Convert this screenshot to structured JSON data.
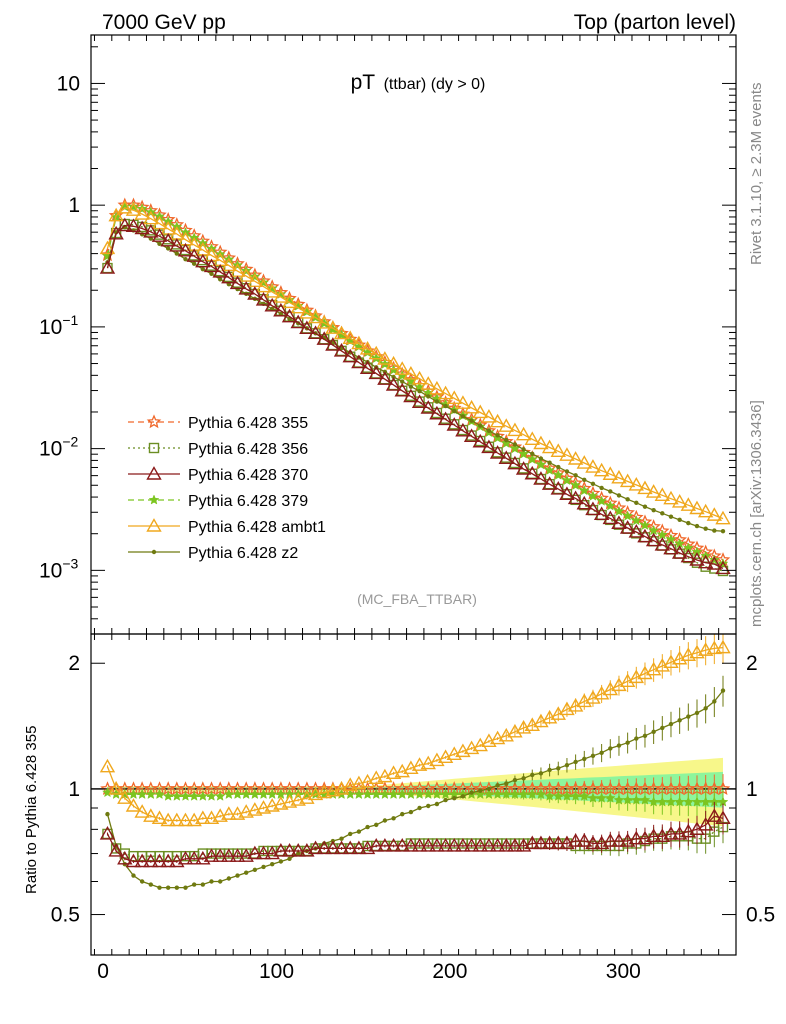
{
  "header": {
    "left": "7000 GeV pp",
    "right": "Top (parton level)"
  },
  "side_labels": {
    "rivet": "Rivet 3.1.10, ≥ 2.3M events",
    "mcplots": "mcplots.cern.ch [arXiv:1306.3436]"
  },
  "chart_data": {
    "type": "line",
    "title_main": "pT",
    "title_sub": "(ttbar) (dy > 0)",
    "watermark": "(MC_FBA_TTBAR)",
    "ratio_ylabel": "Ratio to Pythia 6.428 355",
    "x_ticks": [
      "0",
      "100",
      "200",
      "300"
    ],
    "y_ticks_main": [
      {
        "base": "10",
        "exp": ""
      },
      {
        "base": "1",
        "exp": ""
      },
      {
        "base": "10",
        "exp": "−1"
      },
      {
        "base": "10",
        "exp": "−2"
      },
      {
        "base": "10",
        "exp": "−3"
      }
    ],
    "y_ticks_ratio": [
      "0.5",
      "1",
      "2"
    ],
    "xlim": [
      -7,
      365
    ],
    "ylim_main": [
      0.0003,
      25
    ],
    "ylim_ratio": [
      0.4,
      2.35
    ],
    "scale_main": "log",
    "scale_ratio": "log",
    "x": [
      2.5,
      7.5,
      12.5,
      17.5,
      22.5,
      27.5,
      32.5,
      37.5,
      42.5,
      47.5,
      52.5,
      57.5,
      62.5,
      67.5,
      72.5,
      77.5,
      82.5,
      87.5,
      92.5,
      97.5,
      102.5,
      107.5,
      112.5,
      117.5,
      122.5,
      127.5,
      132.5,
      137.5,
      142.5,
      147.5,
      152.5,
      157.5,
      162.5,
      167.5,
      172.5,
      177.5,
      182.5,
      187.5,
      192.5,
      197.5,
      202.5,
      207.5,
      212.5,
      217.5,
      222.5,
      227.5,
      232.5,
      237.5,
      242.5,
      247.5,
      252.5,
      257.5,
      262.5,
      267.5,
      272.5,
      277.5,
      282.5,
      287.5,
      292.5,
      297.5,
      302.5,
      307.5,
      312.5,
      317.5,
      322.5,
      327.5,
      332.5,
      337.5,
      342.5,
      347.5,
      352.5,
      357.5
    ],
    "series": [
      {
        "name": "Pythia 6.428 355",
        "color": "#f0682b",
        "marker": "star-open",
        "dash": "6,4",
        "values": [
          0.39,
          0.82,
          1.0,
          1.0,
          0.96,
          0.9,
          0.83,
          0.76,
          0.69,
          0.62,
          0.56,
          0.505,
          0.455,
          0.41,
          0.368,
          0.33,
          0.297,
          0.266,
          0.238,
          0.213,
          0.191,
          0.171,
          0.153,
          0.137,
          0.123,
          0.11,
          0.0985,
          0.0882,
          0.079,
          0.0708,
          0.0634,
          0.0568,
          0.0509,
          0.0456,
          0.0409,
          0.0367,
          0.0329,
          0.0295,
          0.0265,
          0.0238,
          0.0214,
          0.0192,
          0.0173,
          0.0156,
          0.014,
          0.0126,
          0.0114,
          0.0103,
          0.0093,
          0.0084,
          0.0076,
          0.0069,
          0.0063,
          0.0057,
          0.0052,
          0.0047,
          0.00428,
          0.0039,
          0.00356,
          0.00325,
          0.00297,
          0.00272,
          0.00249,
          0.00228,
          0.0021,
          0.00193,
          0.00178,
          0.00164,
          0.00152,
          0.00141,
          0.00131,
          0.00122
        ]
      },
      {
        "name": "Pythia 6.428 356",
        "color": "#6b8e23",
        "marker": "square-open",
        "dash": "2,3",
        "ratio": [
          0.78,
          0.72,
          0.7,
          0.69,
          0.69,
          0.69,
          0.69,
          0.69,
          0.69,
          0.69,
          0.69,
          0.7,
          0.7,
          0.7,
          0.7,
          0.7,
          0.7,
          0.7,
          0.71,
          0.71,
          0.71,
          0.71,
          0.71,
          0.71,
          0.72,
          0.72,
          0.72,
          0.72,
          0.72,
          0.72,
          0.73,
          0.73,
          0.73,
          0.73,
          0.73,
          0.74,
          0.74,
          0.74,
          0.74,
          0.74,
          0.74,
          0.74,
          0.74,
          0.74,
          0.74,
          0.74,
          0.74,
          0.74,
          0.74,
          0.74,
          0.74,
          0.74,
          0.74,
          0.74,
          0.73,
          0.73,
          0.73,
          0.73,
          0.73,
          0.73,
          0.74,
          0.74,
          0.75,
          0.76,
          0.76,
          0.77,
          0.77,
          0.77,
          0.76,
          0.76,
          0.79,
          0.81
        ]
      },
      {
        "name": "Pythia 6.428 370",
        "color": "#8b1a1a",
        "marker": "triangle-open",
        "dash": "",
        "ratio": [
          0.78,
          0.71,
          0.68,
          0.67,
          0.67,
          0.67,
          0.67,
          0.67,
          0.67,
          0.68,
          0.68,
          0.68,
          0.69,
          0.69,
          0.69,
          0.69,
          0.69,
          0.7,
          0.7,
          0.7,
          0.71,
          0.71,
          0.71,
          0.71,
          0.72,
          0.72,
          0.72,
          0.72,
          0.72,
          0.72,
          0.72,
          0.73,
          0.73,
          0.73,
          0.73,
          0.73,
          0.73,
          0.73,
          0.73,
          0.73,
          0.73,
          0.73,
          0.73,
          0.73,
          0.73,
          0.73,
          0.73,
          0.73,
          0.73,
          0.74,
          0.74,
          0.74,
          0.74,
          0.74,
          0.75,
          0.75,
          0.74,
          0.74,
          0.75,
          0.75,
          0.75,
          0.76,
          0.76,
          0.77,
          0.77,
          0.78,
          0.78,
          0.79,
          0.8,
          0.82,
          0.86,
          0.85
        ]
      },
      {
        "name": "Pythia 6.428 379",
        "color": "#7cc520",
        "marker": "star-filled",
        "dash": "6,4",
        "ratio": [
          0.98,
          0.97,
          0.97,
          0.97,
          0.97,
          0.97,
          0.97,
          0.96,
          0.96,
          0.96,
          0.96,
          0.96,
          0.96,
          0.96,
          0.97,
          0.97,
          0.97,
          0.97,
          0.97,
          0.97,
          0.97,
          0.97,
          0.97,
          0.97,
          0.97,
          0.97,
          0.97,
          0.97,
          0.97,
          0.97,
          0.97,
          0.97,
          0.97,
          0.97,
          0.97,
          0.97,
          0.97,
          0.97,
          0.97,
          0.97,
          0.97,
          0.97,
          0.97,
          0.97,
          0.97,
          0.97,
          0.97,
          0.97,
          0.97,
          0.97,
          0.97,
          0.96,
          0.96,
          0.96,
          0.96,
          0.96,
          0.95,
          0.95,
          0.95,
          0.94,
          0.94,
          0.94,
          0.94,
          0.93,
          0.93,
          0.93,
          0.93,
          0.93,
          0.93,
          0.93,
          0.93,
          0.93
        ]
      },
      {
        "name": "Pythia 6.428 ambt1",
        "color": "#f0a81e",
        "marker": "triangle-open",
        "dash": "",
        "ratio": [
          1.13,
          1.0,
          0.95,
          0.91,
          0.88,
          0.86,
          0.85,
          0.84,
          0.84,
          0.84,
          0.84,
          0.85,
          0.85,
          0.86,
          0.87,
          0.87,
          0.88,
          0.89,
          0.9,
          0.91,
          0.92,
          0.93,
          0.94,
          0.95,
          0.97,
          0.98,
          0.99,
          1.0,
          1.02,
          1.03,
          1.04,
          1.06,
          1.07,
          1.09,
          1.1,
          1.12,
          1.14,
          1.15,
          1.17,
          1.19,
          1.21,
          1.23,
          1.25,
          1.27,
          1.3,
          1.32,
          1.34,
          1.37,
          1.4,
          1.42,
          1.45,
          1.48,
          1.51,
          1.55,
          1.58,
          1.62,
          1.65,
          1.69,
          1.73,
          1.77,
          1.81,
          1.85,
          1.89,
          1.93,
          1.97,
          2.01,
          2.05,
          2.09,
          2.12,
          2.15,
          2.17,
          2.18
        ]
      },
      {
        "name": "Pythia 6.428 z2",
        "color": "#6f7a10",
        "marker": "dot",
        "dash": "",
        "ratio": [
          0.87,
          0.73,
          0.66,
          0.62,
          0.6,
          0.59,
          0.58,
          0.58,
          0.58,
          0.58,
          0.59,
          0.59,
          0.6,
          0.6,
          0.61,
          0.62,
          0.63,
          0.64,
          0.65,
          0.66,
          0.67,
          0.68,
          0.7,
          0.71,
          0.72,
          0.74,
          0.75,
          0.76,
          0.78,
          0.79,
          0.81,
          0.82,
          0.84,
          0.85,
          0.87,
          0.88,
          0.9,
          0.91,
          0.92,
          0.94,
          0.95,
          0.96,
          0.98,
          0.99,
          1.0,
          1.02,
          1.03,
          1.05,
          1.06,
          1.08,
          1.09,
          1.11,
          1.12,
          1.14,
          1.16,
          1.18,
          1.2,
          1.22,
          1.25,
          1.27,
          1.29,
          1.32,
          1.34,
          1.37,
          1.4,
          1.43,
          1.46,
          1.49,
          1.52,
          1.56,
          1.62,
          1.72
        ]
      }
    ],
    "ref_band": {
      "inner_color": "#8ef59c",
      "outer_color": "#f7f78a",
      "line_color": "#000000"
    }
  }
}
